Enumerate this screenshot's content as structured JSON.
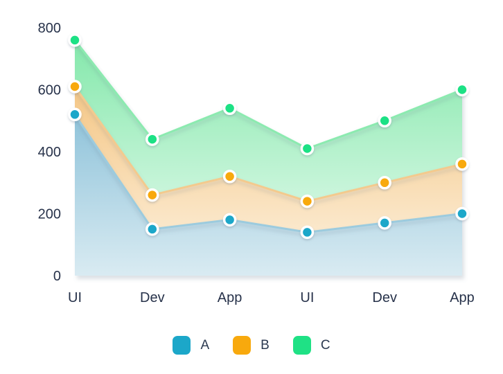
{
  "chart_data": {
    "type": "area",
    "variant": "overlapping-gradient-areas-with-points",
    "title": "",
    "xlabel": "",
    "ylabel": "",
    "categories": [
      "UI",
      "Dev",
      "App",
      "UI",
      "Dev",
      "App"
    ],
    "series": [
      {
        "name": "A",
        "values": [
          520,
          150,
          180,
          140,
          170,
          200
        ],
        "point_color": "#1ca7c9",
        "line_color": "#9ccbde",
        "fill_top": "#8fc3da",
        "fill_bottom": "#d9ebf2"
      },
      {
        "name": "B",
        "values": [
          610,
          260,
          320,
          240,
          300,
          360
        ],
        "point_color": "#f8a90d",
        "line_color": "#f3ca8e",
        "fill_top": "#f4c685",
        "fill_bottom": "#fdf3e2"
      },
      {
        "name": "C",
        "values": [
          760,
          440,
          540,
          410,
          500,
          600
        ],
        "point_color": "#1fe185",
        "line_color": "#8ceab0",
        "fill_top": "#84e8ab",
        "fill_bottom": "#eefcf4"
      }
    ],
    "ylim": [
      0,
      800
    ],
    "yticks": [
      0,
      200,
      400,
      600,
      800
    ],
    "grid": false,
    "axis_lines": false,
    "legend": {
      "position": "bottom-center",
      "entries": [
        "A",
        "B",
        "C"
      ]
    },
    "text_color": "#27324a",
    "point_ring_color": "#ffffff",
    "background": "#ffffff"
  }
}
